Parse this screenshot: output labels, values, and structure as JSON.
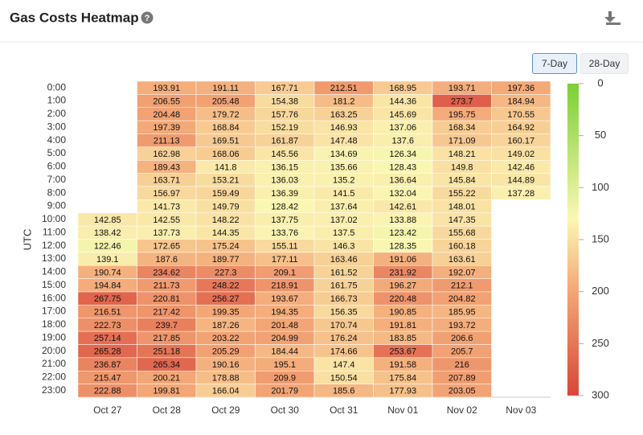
{
  "buttons": [
    "7-Day",
    "28-Day"
  ],
  "chart_data": {
    "type": "heatmap",
    "title": "Gas Costs Heatmap",
    "y_label": "UTC",
    "x": [
      "Oct 27",
      "Oct 28",
      "Oct 29",
      "Oct 30",
      "Oct 31",
      "Nov 01",
      "Nov 02",
      "Nov 03"
    ],
    "y": [
      "0:00",
      "1:00",
      "2:00",
      "3:00",
      "4:00",
      "5:00",
      "6:00",
      "7:00",
      "8:00",
      "9:00",
      "10:00",
      "11:00",
      "12:00",
      "13:00",
      "14:00",
      "15:00",
      "16:00",
      "17:00",
      "18:00",
      "19:00",
      "20:00",
      "21:00",
      "22:00",
      "23:00"
    ],
    "values": [
      [
        null,
        193.91,
        191.11,
        167.71,
        212.51,
        168.95,
        193.71,
        197.36
      ],
      [
        null,
        206.55,
        205.48,
        154.38,
        181.2,
        144.36,
        273.7,
        184.94
      ],
      [
        null,
        204.48,
        179.72,
        157.76,
        163.25,
        145.69,
        195.75,
        170.55
      ],
      [
        null,
        197.39,
        168.84,
        152.19,
        146.93,
        137.06,
        168.34,
        164.92
      ],
      [
        null,
        211.13,
        169.51,
        161.87,
        147.48,
        137.6,
        171.09,
        160.17
      ],
      [
        null,
        162.98,
        168.06,
        145.56,
        134.69,
        126.34,
        148.21,
        149.02
      ],
      [
        null,
        189.43,
        141.8,
        136.15,
        135.66,
        128.43,
        149.8,
        142.46
      ],
      [
        null,
        163.71,
        153.21,
        136.03,
        135.2,
        136.64,
        145.84,
        144.89
      ],
      [
        null,
        156.97,
        159.49,
        136.39,
        141.5,
        132.04,
        155.22,
        137.28
      ],
      [
        null,
        141.73,
        149.79,
        128.42,
        137.64,
        142.61,
        148.01,
        null
      ],
      [
        142.85,
        142.55,
        148.22,
        137.75,
        137.02,
        133.88,
        147.35,
        null
      ],
      [
        138.42,
        137.73,
        144.35,
        133.76,
        137.5,
        123.42,
        155.68,
        null
      ],
      [
        122.46,
        172.65,
        175.24,
        155.11,
        146.3,
        128.35,
        160.18,
        null
      ],
      [
        139.1,
        187.6,
        189.77,
        177.11,
        163.46,
        191.06,
        163.61,
        null
      ],
      [
        190.74,
        234.62,
        227.3,
        209.1,
        161.52,
        231.92,
        192.07,
        null
      ],
      [
        194.84,
        211.73,
        248.22,
        218.91,
        161.75,
        196.27,
        212.1,
        null
      ],
      [
        267.75,
        220.81,
        256.27,
        193.67,
        166.73,
        220.48,
        204.82,
        null
      ],
      [
        216.51,
        217.42,
        199.35,
        194.35,
        156.35,
        190.85,
        185.95,
        null
      ],
      [
        222.73,
        239.7,
        187.26,
        201.48,
        170.74,
        191.81,
        193.72,
        null
      ],
      [
        257.14,
        217.85,
        203.22,
        204.99,
        176.24,
        183.85,
        206.6,
        null
      ],
      [
        265.28,
        251.18,
        205.29,
        184.44,
        174.66,
        253.67,
        205.7,
        null
      ],
      [
        236.87,
        265.34,
        190.16,
        195.1,
        147.4,
        191.58,
        216,
        null
      ],
      [
        215.47,
        200.21,
        178.88,
        209.9,
        150.54,
        175.84,
        207.89,
        null
      ],
      [
        222.88,
        199.81,
        166.04,
        201.79,
        185.6,
        177.93,
        203.05,
        null
      ]
    ],
    "zlim": [
      0,
      300
    ],
    "zticks": [
      0,
      50,
      100,
      150,
      200,
      250,
      300
    ],
    "colorscale": [
      [
        0,
        "#7ccf35"
      ],
      [
        130,
        "#fbf7b4"
      ],
      [
        200,
        "#f3a676"
      ],
      [
        300,
        "#d8463a"
      ]
    ]
  }
}
